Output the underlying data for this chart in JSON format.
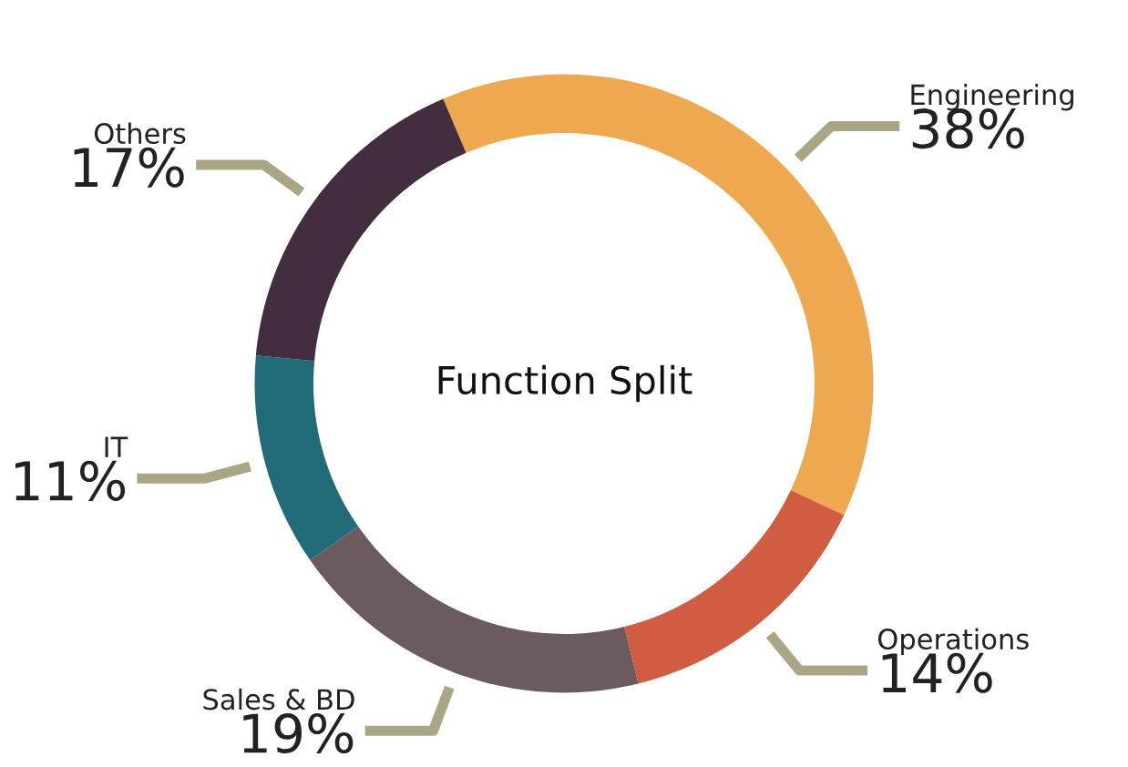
{
  "chart_data": {
    "type": "donut",
    "title": "Function Split",
    "categories": [
      "Engineering",
      "Operations",
      "Sales & BD",
      "IT",
      "Others"
    ],
    "values": [
      38,
      14,
      19,
      11,
      17
    ],
    "value_labels": [
      "38%",
      "14%",
      "19%",
      "11%",
      "17%"
    ],
    "colors": [
      "#eea84f",
      "#d05c41",
      "#6b5b5e",
      "#226b78",
      "#432e3f"
    ],
    "legend": false
  }
}
